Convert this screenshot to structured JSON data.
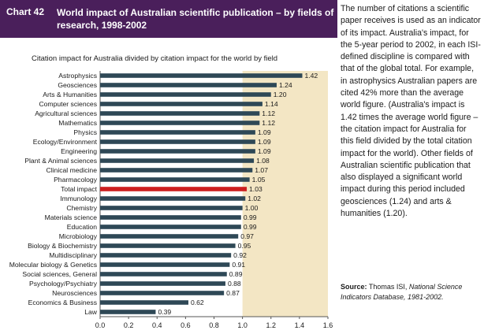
{
  "header": {
    "chart_number": "Chart 42",
    "title": "World impact of Australian scientific publication – by fields of research, 1998-2002"
  },
  "colors": {
    "header_bg": "#4a1f5b",
    "plot_bg": "#f3e6c4",
    "bar": "#2e4856",
    "highlight_bar": "#cc1f1f"
  },
  "sidebar": {
    "text": "The number of citations a scientific paper receives is used as an indicator of its impact. Australia's impact, for the 5-year period to 2002, in each ISI-defined discipline is compared with that of the global total. For example, in astrophysics Australian papers are cited 42% more than the average world figure. (Australia's impact is 1.42 times the average world figure – the citation impact for Australia for this field divided by the total citation impact for the world). Other fields of Australian scientific publication that also displayed a significant world impact during this period included geosciences (1.24) and arts & humanities (1.20).",
    "source_label": "Source:",
    "source_text": "Thomas ISI,",
    "source_italic": "National Science Indicators Database, 1981-2002."
  },
  "chart_data": {
    "type": "bar",
    "orientation": "horizontal",
    "subtitle": "Citation impact for Australia divided by citation impact for the world by field",
    "categories": [
      "Astrophysics",
      "Geosciences",
      "Arts & Humanities",
      "Computer sciences",
      "Agricultural sciences",
      "Mathematics",
      "Physics",
      "Ecology/Environment",
      "Engineering",
      "Plant & Animal sciences",
      "Clinical medicine",
      "Pharmacology",
      "Total impact",
      "Immunology",
      "Chemistry",
      "Materials science",
      "Education",
      "Microbiology",
      "Biology & Biochemistry",
      "Multidisciplinary",
      "Molecular biology & Genetics",
      "Social sciences, General",
      "Psychology/Psychiatry",
      "Neurosciences",
      "Economics & Business",
      "Law"
    ],
    "values": [
      1.42,
      1.24,
      1.2,
      1.14,
      1.12,
      1.12,
      1.09,
      1.09,
      1.09,
      1.08,
      1.07,
      1.05,
      1.03,
      1.02,
      1.0,
      0.99,
      0.99,
      0.97,
      0.95,
      0.92,
      0.91,
      0.89,
      0.88,
      0.87,
      0.62,
      0.39
    ],
    "value_labels": [
      "1.42",
      "1.24",
      "1.20",
      "1.14",
      "1.12",
      "1.12",
      "1.09",
      "1.09",
      "1.09",
      "1.08",
      "1.07",
      "1.05",
      "1.03",
      "1.02",
      "1.00",
      "0.99",
      "0.99",
      "0.97",
      "0.95",
      "0.92",
      "0.91",
      "0.89",
      "0.88",
      "0.87",
      "0.62",
      "0.39"
    ],
    "highlight_category": "Total impact",
    "xlim": [
      0,
      1.6
    ],
    "x_ticks": [
      "0.0",
      "0.2",
      "0.4",
      "0.6",
      "0.8",
      "1.0",
      "1.2",
      "1.4",
      "1.6"
    ],
    "shaded_region_start": 1.0,
    "grid": false,
    "legend": false
  }
}
